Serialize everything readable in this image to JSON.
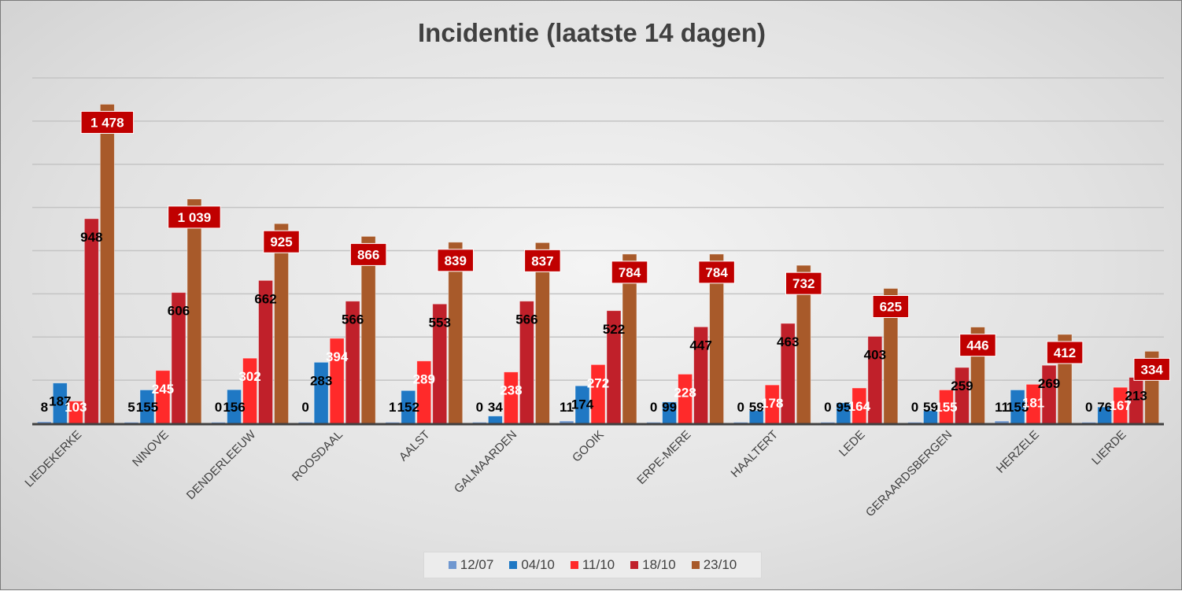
{
  "chart_data": {
    "type": "bar",
    "title": "Incidentie (laatste 14 dagen)",
    "xlabel": "",
    "ylabel": "",
    "ylim": [
      0,
      1600
    ],
    "grid": true,
    "legend_position": "bottom",
    "categories": [
      "LIEDEKERKE",
      "NINOVE",
      "DENDERLEEUW",
      "ROOSDAAL",
      "AALST",
      "GALMAARDEN",
      "GOOIK",
      "ERPE-MERE",
      "HAALTERT",
      "LEDE",
      "GERAARDSBERGEN",
      "HERZELE",
      "LIERDE"
    ],
    "series": [
      {
        "name": "12/07",
        "color": "#6f97d0",
        "values": [
          8,
          5,
          0,
          0,
          1,
          0,
          11,
          0,
          0,
          0,
          0,
          11,
          0
        ]
      },
      {
        "name": "04/10",
        "color": "#1f78c4",
        "values": [
          187,
          155,
          156,
          283,
          152,
          34,
          174,
          99,
          59,
          95,
          59,
          155,
          76
        ]
      },
      {
        "name": "11/10",
        "color": "#ff2a2a",
        "values": [
          103,
          245,
          302,
          394,
          289,
          238,
          272,
          228,
          178,
          164,
          155,
          181,
          167
        ]
      },
      {
        "name": "18/10",
        "color": "#c0202a",
        "values": [
          948,
          606,
          662,
          566,
          553,
          566,
          522,
          447,
          463,
          403,
          259,
          269,
          213
        ]
      },
      {
        "name": "23/10",
        "color": "#a85a2a",
        "values": [
          1478,
          1039,
          925,
          866,
          839,
          837,
          784,
          784,
          732,
          625,
          446,
          412,
          334
        ]
      }
    ]
  }
}
